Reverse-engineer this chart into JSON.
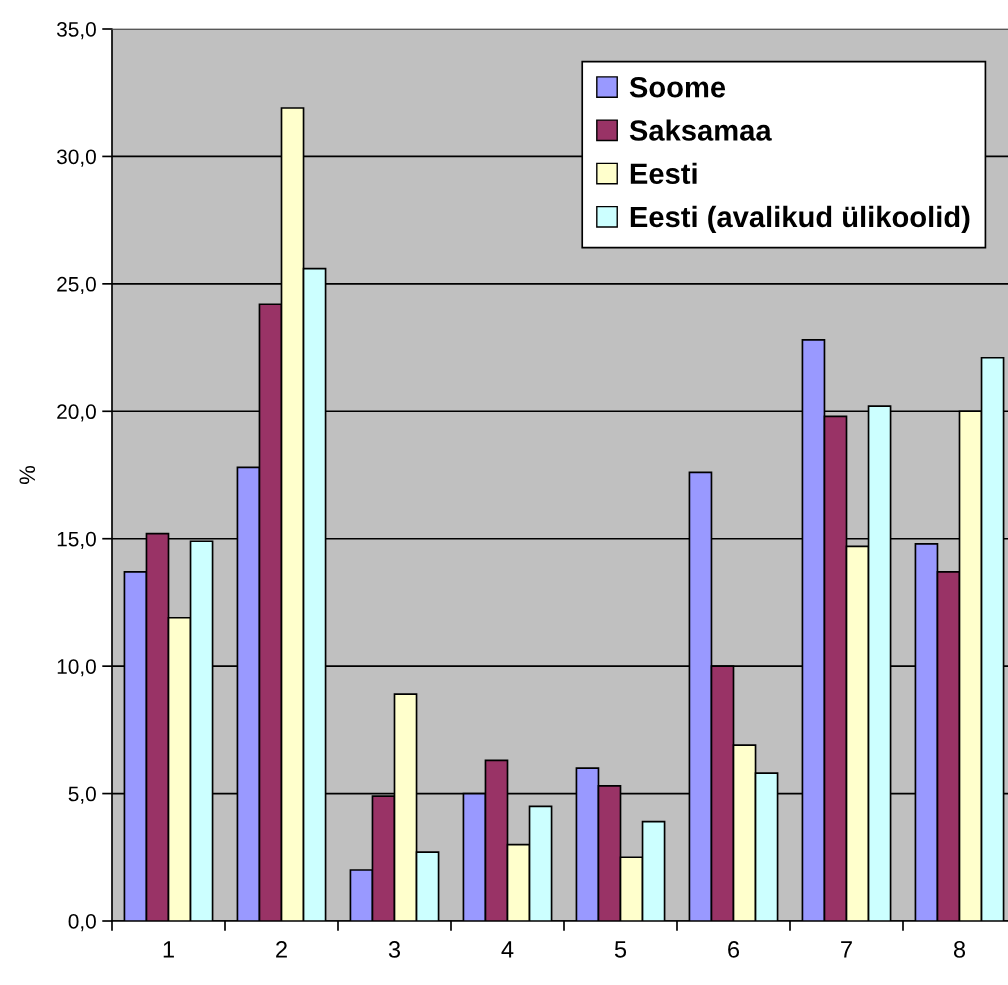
{
  "chart_data": {
    "type": "bar",
    "ylabel": "%",
    "categories": [
      "1",
      "2",
      "3",
      "4",
      "5",
      "6",
      "7",
      "8"
    ],
    "series": [
      {
        "name": "Soome",
        "color": "#9999ff",
        "values": [
          13.7,
          17.8,
          2.0,
          5.0,
          6.0,
          17.6,
          22.8,
          14.8
        ]
      },
      {
        "name": "Saksamaa",
        "color": "#993366",
        "values": [
          15.2,
          24.2,
          4.9,
          6.3,
          5.3,
          10.0,
          19.8,
          13.7
        ]
      },
      {
        "name": "Eesti",
        "color": "#ffffcc",
        "values": [
          11.9,
          31.9,
          8.9,
          3.0,
          2.5,
          6.9,
          14.7,
          20.0
        ]
      },
      {
        "name": "Eesti (avalikud ülikoolid)",
        "color": "#ccffff",
        "values": [
          14.9,
          25.6,
          2.7,
          4.5,
          3.9,
          5.8,
          20.2,
          22.1
        ]
      }
    ],
    "ylim": [
      0,
      35
    ],
    "yticks": [
      {
        "value": 0,
        "label": "0,0"
      },
      {
        "value": 5,
        "label": "5,0"
      },
      {
        "value": 10,
        "label": "10,0"
      },
      {
        "value": 15,
        "label": "15,0"
      },
      {
        "value": 20,
        "label": "20,0"
      },
      {
        "value": 25,
        "label": "25,0"
      },
      {
        "value": 30,
        "label": "30,0"
      },
      {
        "value": 35,
        "label": "35,0"
      }
    ],
    "grid": "y",
    "legend": "top right"
  }
}
